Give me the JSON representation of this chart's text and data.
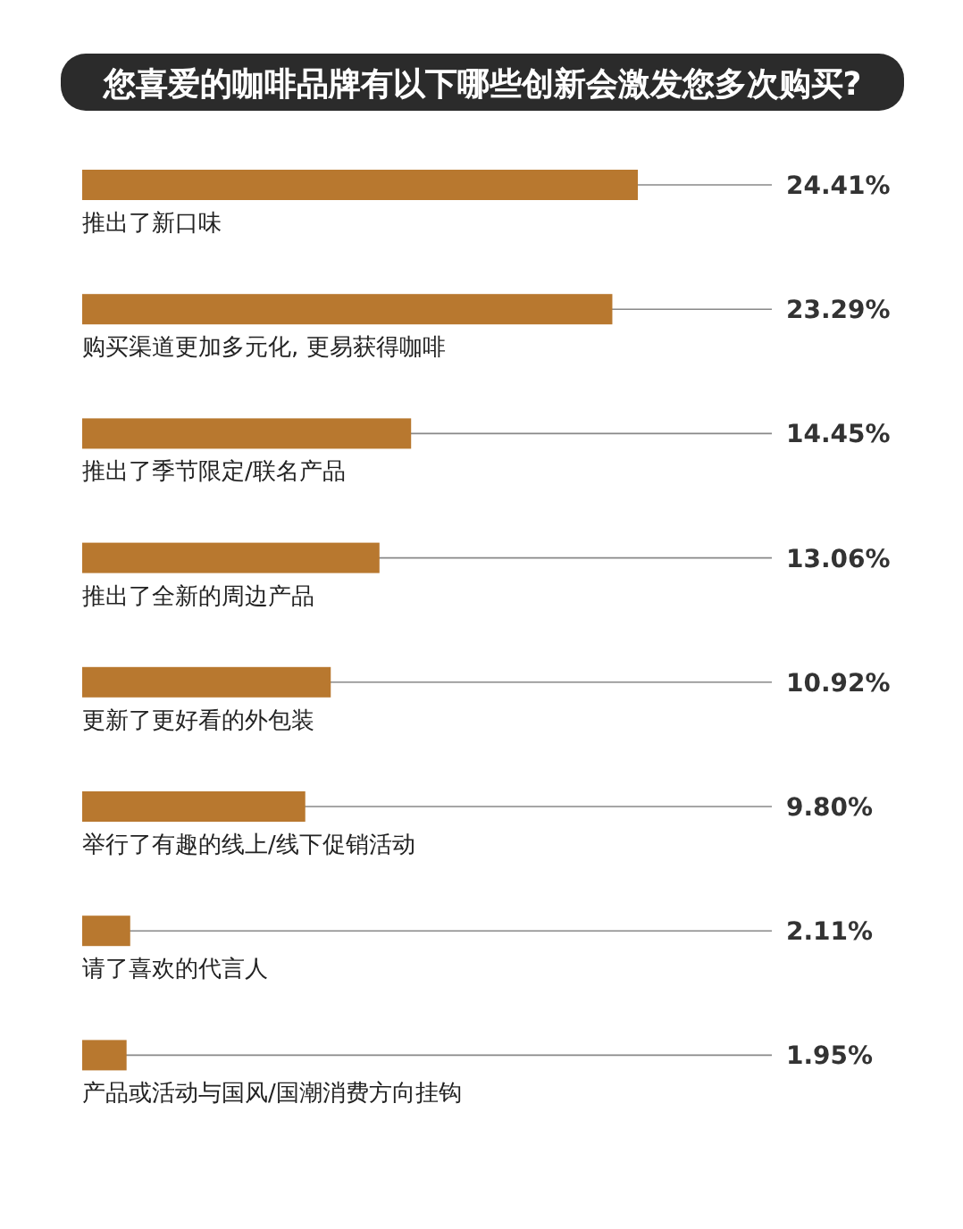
{
  "chart_data": {
    "type": "bar",
    "orientation": "horizontal",
    "title": "您喜爱的咖啡品牌有以下哪些创新会激发您多次购买?",
    "categories": [
      "推出了新口味",
      "购买渠道更加多元化, 更易获得咖啡",
      "推出了季节限定/联名产品",
      "推出了全新的周边产品",
      "更新了更好看的外包装",
      "举行了有趣的线上/线下促销活动",
      "请了喜欢的代言人",
      "产品或活动与国风/国潮消费方向挂钩"
    ],
    "values": [
      24.41,
      23.29,
      14.45,
      13.06,
      10.92,
      9.8,
      2.11,
      1.95
    ],
    "value_labels": [
      "24.41%",
      "23.29%",
      "14.45%",
      "13.06%",
      "10.92%",
      "9.80%",
      "2.11%",
      "1.95%"
    ],
    "color": "#b8782f"
  }
}
